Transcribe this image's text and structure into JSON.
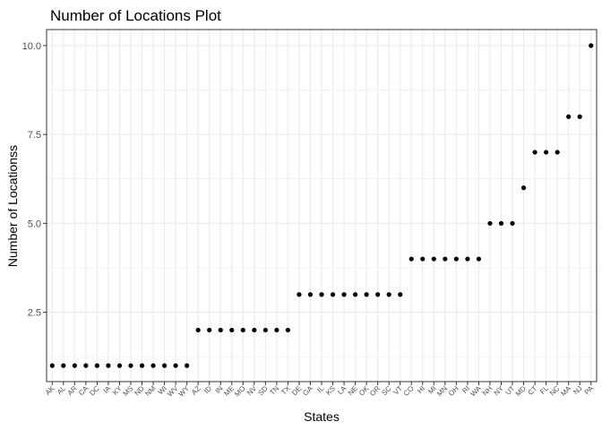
{
  "chart_data": {
    "type": "scatter",
    "title": "Number of Locations Plot",
    "xlabel": "States",
    "ylabel": "Number of Locationss",
    "categories": [
      "AK",
      "AL",
      "AR",
      "CA",
      "DC",
      "IA",
      "KY",
      "MS",
      "ND",
      "NM",
      "WI",
      "WV",
      "WY",
      "AZ",
      "ID",
      "IN",
      "ME",
      "MO",
      "NV",
      "SD",
      "TN",
      "TX",
      "DE",
      "GA",
      "IL",
      "KS",
      "LA",
      "NE",
      "OK",
      "OR",
      "SC",
      "VT",
      "CO",
      "HI",
      "MI",
      "MN",
      "OH",
      "RI",
      "WA",
      "NH",
      "NY",
      "UT",
      "MD",
      "CT",
      "FL",
      "NC",
      "MA",
      "NJ",
      "PA"
    ],
    "values": [
      1,
      1,
      1,
      1,
      1,
      1,
      1,
      1,
      1,
      1,
      1,
      1,
      1,
      2,
      2,
      2,
      2,
      2,
      2,
      2,
      2,
      2,
      3,
      3,
      3,
      3,
      3,
      3,
      3,
      3,
      3,
      3,
      4,
      4,
      4,
      4,
      4,
      4,
      4,
      5,
      5,
      5,
      6,
      7,
      7,
      7,
      8,
      8,
      10
    ],
    "ylim": [
      0.55,
      10.45
    ],
    "yticks": [
      2.5,
      5.0,
      7.5,
      10.0
    ],
    "ytick_labels": [
      "2.5",
      "5.0",
      "7.5",
      "10.0"
    ],
    "grid": true,
    "point_color": "#000000",
    "grid_color": "#ebebeb",
    "border_color": "#333333"
  }
}
